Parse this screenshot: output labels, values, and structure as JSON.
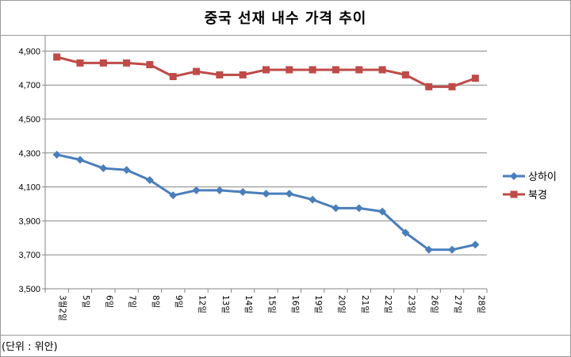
{
  "title": "중국 선재 내수 가격 추이",
  "unit_note": "(단위 : 위안)",
  "colors": {
    "shanghai": "#4a7ebb",
    "beijing": "#be4b48",
    "grid": "#858585"
  },
  "chart_data": {
    "type": "line",
    "title": "중국 선재 내수 가격 추이",
    "categories": [
      "3월2일",
      "5일",
      "6일",
      "7일",
      "8일",
      "9일",
      "12일",
      "13일",
      "14일",
      "15일",
      "16일",
      "19일",
      "20일",
      "21일",
      "22일",
      "23일",
      "26일",
      "27일",
      "28일"
    ],
    "series": [
      {
        "name": "상하이",
        "marker": "diamond",
        "values": [
          4290,
          4260,
          4210,
          4200,
          4140,
          4050,
          4080,
          4080,
          4070,
          4060,
          4060,
          4025,
          3975,
          3975,
          3955,
          3830,
          3730,
          3730,
          3760
        ]
      },
      {
        "name": "북경",
        "marker": "square",
        "values": [
          4865,
          4830,
          4830,
          4830,
          4820,
          4750,
          4780,
          4760,
          4760,
          4790,
          4790,
          4790,
          4790,
          4790,
          4790,
          4760,
          4690,
          4690,
          4740
        ]
      }
    ],
    "ylim": [
      3500,
      5000
    ],
    "yticks": [
      3500,
      3700,
      3900,
      4100,
      4300,
      4500,
      4700,
      4900
    ],
    "ytick_labels": [
      "3,500",
      "3,700",
      "3,900",
      "4,100",
      "4,300",
      "4,500",
      "4,700",
      "4,900"
    ],
    "grid": true,
    "legend_position": "right"
  }
}
